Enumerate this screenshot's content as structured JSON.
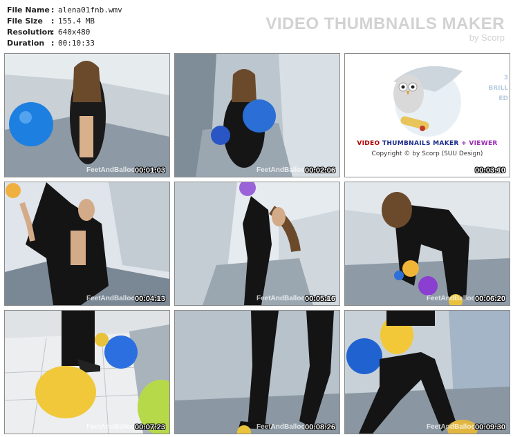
{
  "info": {
    "file_name_label": "File Name",
    "file_name": "alena01fnb.wmv",
    "file_size_label": "File Size",
    "file_size": "155.4 MB",
    "resolution_label": "Resolution",
    "resolution": "640x480",
    "duration_label": "Duration",
    "duration": "00:10:33"
  },
  "brand": {
    "title": "VIDEO THUMBNAILS MAKER",
    "subtitle": "by Scorp"
  },
  "thumbnails": [
    {
      "timestamp": "00:01:03",
      "watermark": "FeetAndBalloons"
    },
    {
      "timestamp": "00:02:06",
      "watermark": "FeetAndBalloons"
    },
    {
      "timestamp": "00:03:10"
    },
    {
      "timestamp": "00:04:13",
      "watermark": "FeetAndBalloons.com"
    },
    {
      "timestamp": "00:05:16",
      "watermark": "FeetAndBalloons.com"
    },
    {
      "timestamp": "00:06:20",
      "watermark": "FeetAndBalloons.com"
    },
    {
      "timestamp": "00:07:23",
      "watermark": "FeetAndBalloons.com"
    },
    {
      "timestamp": "00:08:26",
      "watermark": "FeetAndBalloons.com"
    },
    {
      "timestamp": "00:09:30",
      "watermark": "FeetAndBalloons.com"
    }
  ],
  "promo": {
    "line1_a": "VIDEO",
    "line1_b": "THUMBNAILS MAKER",
    "line1_c": "+",
    "line1_d": "VIEWER",
    "line2": "Copyright © by Scorp (SUU Design)",
    "side_1": "3",
    "side_2": "BRILL",
    "side_3": "ED"
  },
  "colors": {
    "background": "#ffffff",
    "brand_text": "#d2d2d2",
    "timestamp": "#ffffff",
    "thumb_border": "#8a8a8a"
  }
}
